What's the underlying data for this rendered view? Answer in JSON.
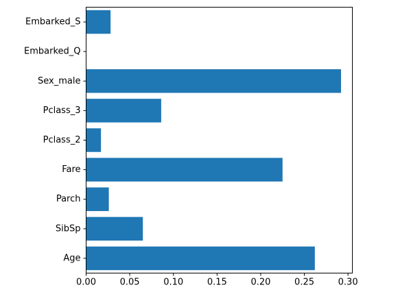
{
  "chart_data": {
    "type": "bar",
    "orientation": "horizontal",
    "categories": [
      "Age",
      "SibSp",
      "Parch",
      "Fare",
      "Pclass_2",
      "Pclass_3",
      "Sex_male",
      "Embarked_Q",
      "Embarked_S"
    ],
    "values": [
      0.262,
      0.065,
      0.026,
      0.225,
      0.017,
      0.086,
      0.292,
      0.0,
      0.028
    ],
    "xlim": [
      0,
      0.305
    ],
    "xticks": [
      0.0,
      0.05,
      0.1,
      0.15,
      0.2,
      0.25,
      0.3
    ],
    "xtick_labels": [
      "0.00",
      "0.05",
      "0.10",
      "0.15",
      "0.20",
      "0.25",
      "0.30"
    ],
    "grid": false,
    "bar_color": "#1f77b4"
  }
}
